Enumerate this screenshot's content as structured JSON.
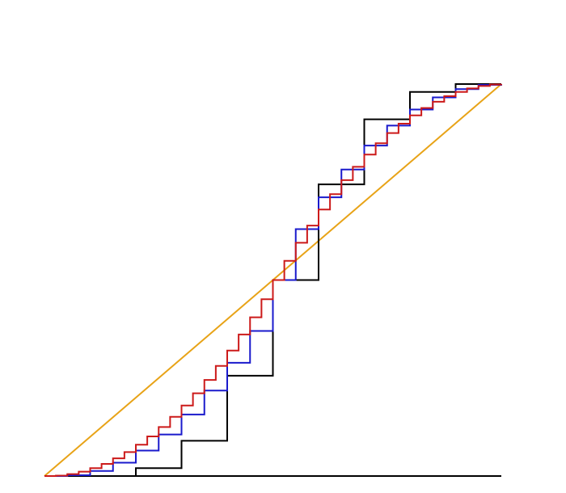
{
  "chart_data": {
    "type": "line",
    "title": "",
    "xlabel": "",
    "ylabel": "",
    "xlim": [
      0,
      1
    ],
    "ylim": [
      0,
      1
    ],
    "grid": false,
    "axes": {
      "x_baseline": true,
      "ticks": false
    },
    "series": [
      {
        "style": "line",
        "color": "#e8a317",
        "x": [
          0,
          1
        ],
        "y": [
          0,
          1
        ]
      },
      {
        "style": "step",
        "color": "#000000",
        "steps": 10,
        "values": [
          0,
          0,
          0.02,
          0.09,
          0.256,
          0.5,
          0.744,
          0.91,
          0.98,
          1.0
        ]
      },
      {
        "style": "step",
        "color": "#1a1acc",
        "steps": 20,
        "values": [
          0,
          0.002,
          0.013,
          0.034,
          0.065,
          0.106,
          0.157,
          0.218,
          0.289,
          0.37,
          0.5,
          0.63,
          0.711,
          0.782,
          0.843,
          0.894,
          0.935,
          0.966,
          0.987,
          0.998
        ]
      },
      {
        "style": "step",
        "color": "#cc1a1a",
        "steps": 40,
        "values": [
          0,
          0.001,
          0.005,
          0.011,
          0.02,
          0.031,
          0.045,
          0.061,
          0.08,
          0.101,
          0.125,
          0.151,
          0.18,
          0.211,
          0.245,
          0.281,
          0.32,
          0.361,
          0.405,
          0.451,
          0.5,
          0.549,
          0.595,
          0.639,
          0.68,
          0.719,
          0.755,
          0.789,
          0.82,
          0.849,
          0.875,
          0.899,
          0.92,
          0.939,
          0.955,
          0.969,
          0.98,
          0.989,
          0.995,
          0.999
        ]
      }
    ]
  }
}
